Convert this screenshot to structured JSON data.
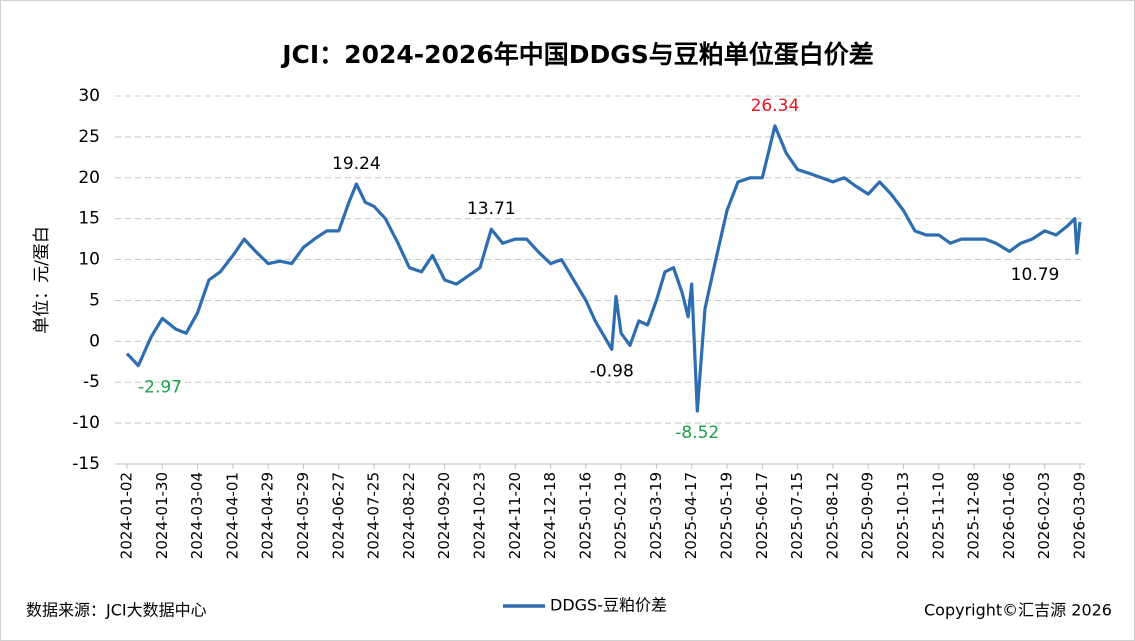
{
  "chart_data": {
    "type": "line",
    "title": "JCI：2024-2026年中国DDGS与豆粕单位蛋白价差",
    "y_label": "单位：元/蛋白",
    "source": "数据来源：JCI大数据中心",
    "copyright": "Copyright©汇吉源 2026",
    "ylim": [
      -15,
      30
    ],
    "yticks": [
      -15,
      -10,
      -5,
      0,
      5,
      10,
      15,
      20,
      25,
      30
    ],
    "grid": true,
    "xticks": [
      "2024-01-02",
      "2024-01-30",
      "2024-03-04",
      "2024-04-01",
      "2024-04-29",
      "2024-05-29",
      "2024-06-27",
      "2024-07-25",
      "2024-08-22",
      "2024-09-20",
      "2024-10-23",
      "2024-11-20",
      "2024-12-18",
      "2025-01-16",
      "2025-02-19",
      "2025-03-19",
      "2025-04-17",
      "2025-05-19",
      "2025-06-17",
      "2025-07-15",
      "2025-08-12",
      "2025-09-09",
      "2025-10-13",
      "2025-11-10",
      "2025-12-08",
      "2026-01-06",
      "2026-02-03",
      "2026-03-09"
    ],
    "x": [
      "2024-01-02",
      "2024-01-11",
      "2024-01-21",
      "2024-01-30",
      "2024-02-12",
      "2024-02-22",
      "2024-03-04",
      "2024-03-13",
      "2024-03-22",
      "2024-04-01",
      "2024-04-10",
      "2024-04-19",
      "2024-04-29",
      "2024-05-09",
      "2024-05-19",
      "2024-05-29",
      "2024-06-07",
      "2024-06-17",
      "2024-06-27",
      "2024-07-05",
      "2024-07-11",
      "2024-07-18",
      "2024-07-25",
      "2024-08-03",
      "2024-08-13",
      "2024-08-22",
      "2024-09-01",
      "2024-09-10",
      "2024-09-20",
      "2024-10-01",
      "2024-10-12",
      "2024-10-23",
      "2024-11-01",
      "2024-11-10",
      "2024-11-20",
      "2024-11-29",
      "2024-12-08",
      "2024-12-18",
      "2024-12-27",
      "2025-01-06",
      "2025-01-16",
      "2025-01-25",
      "2025-02-10",
      "2025-02-14",
      "2025-02-19",
      "2025-02-26",
      "2025-03-05",
      "2025-03-12",
      "2025-03-19",
      "2025-03-26",
      "2025-04-02",
      "2025-04-09",
      "2025-04-14",
      "2025-04-17",
      "2025-04-22",
      "2025-04-29",
      "2025-05-08",
      "2025-05-19",
      "2025-05-28",
      "2025-06-07",
      "2025-06-17",
      "2025-06-27",
      "2025-07-06",
      "2025-07-15",
      "2025-07-25",
      "2025-08-03",
      "2025-08-12",
      "2025-08-21",
      "2025-08-30",
      "2025-09-09",
      "2025-09-20",
      "2025-10-01",
      "2025-10-13",
      "2025-10-22",
      "2025-10-31",
      "2025-11-10",
      "2025-11-19",
      "2025-11-28",
      "2025-12-08",
      "2025-12-17",
      "2025-12-26",
      "2026-01-06",
      "2026-01-15",
      "2026-01-24",
      "2026-02-03",
      "2026-02-14",
      "2026-02-24",
      "2026-03-04",
      "2026-03-06",
      "2026-03-09"
    ],
    "series": [
      {
        "name": "DDGS-豆粕价差",
        "color": "#2e6eb0",
        "values": [
          -1.5,
          -2.97,
          0.5,
          2.8,
          1.5,
          1.0,
          3.5,
          7.5,
          8.5,
          10.5,
          12.5,
          11,
          9.5,
          9.8,
          9.5,
          11.5,
          12.5,
          13.5,
          13.5,
          17,
          19.24,
          17,
          16.5,
          15,
          12,
          9,
          8.5,
          10.5,
          7.5,
          7,
          8,
          9,
          13.71,
          12,
          12.5,
          12.5,
          11,
          9.5,
          10,
          7.5,
          5,
          2.5,
          -0.98,
          5.5,
          1.0,
          -0.5,
          2.5,
          2.0,
          5,
          8.5,
          9,
          6,
          3,
          7,
          -8.52,
          4,
          9.5,
          16,
          19.5,
          20,
          20,
          26.34,
          23,
          21,
          20.5,
          20,
          19.5,
          20,
          19,
          18,
          19.5,
          18,
          16,
          13.5,
          13,
          13,
          12,
          12.5,
          12.5,
          12.5,
          12,
          11,
          12,
          12.5,
          13.5,
          13,
          14,
          15,
          10.79,
          14.6
        ]
      }
    ],
    "annotations": [
      {
        "x": "2024-01-11",
        "value": -2.97,
        "color": "#1aa34a"
      },
      {
        "x": "2024-07-11",
        "value": 19.24,
        "color": "#000000"
      },
      {
        "x": "2024-11-01",
        "value": 13.71,
        "color": "#000000"
      },
      {
        "x": "2025-02-10",
        "value": -0.98,
        "color": "#000000"
      },
      {
        "x": "2025-04-22",
        "value": -8.52,
        "color": "#1aa34a"
      },
      {
        "x": "2025-06-27",
        "value": 26.34,
        "color": "#e8141c"
      },
      {
        "x": "2026-03-06",
        "value": 10.79,
        "color": "#000000"
      }
    ]
  }
}
